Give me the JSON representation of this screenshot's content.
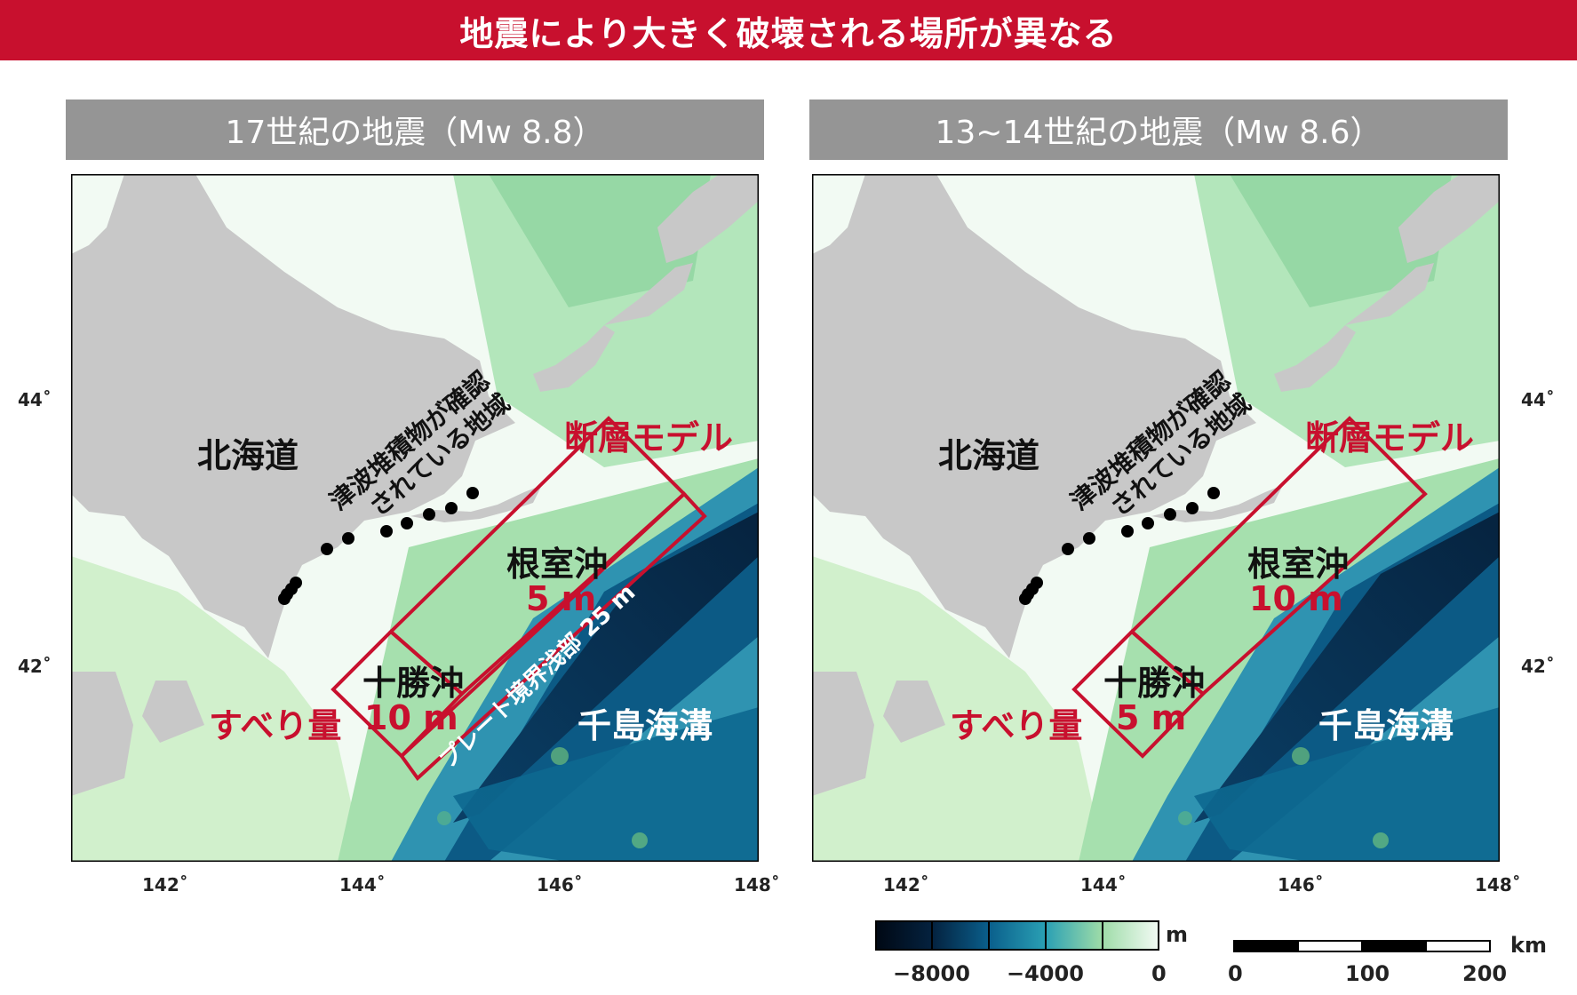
{
  "banner": {
    "title": "地震により大きく破壊される場所が異なる"
  },
  "panels": [
    {
      "title": "17世紀の地震（Mw 8.8）",
      "labels": {
        "hokkaido": "北海道",
        "tsunami_line1": "津波堆積物が確認",
        "tsunami_line2": "されている地域",
        "fault_model": "断層モデル",
        "nemuro": "根室沖",
        "nemuro_slip": "5 m",
        "tokachi": "十勝沖",
        "tokachi_slip": "10 m",
        "slip_label": "すべり量",
        "shallow": "プレート境界浅部 25 m",
        "trench": "千島海溝"
      }
    },
    {
      "title": "13~14世紀の地震（Mw 8.6）",
      "labels": {
        "hokkaido": "北海道",
        "tsunami_line1": "津波堆積物が確認",
        "tsunami_line2": "されている地域",
        "fault_model": "断層モデル",
        "nemuro": "根室沖",
        "nemuro_slip": "10 m",
        "tokachi": "十勝沖",
        "tokachi_slip": "5 m",
        "slip_label": "すべり量",
        "trench": "千島海溝"
      }
    }
  ],
  "axes": {
    "lon_ticks": [
      "142˚",
      "144˚",
      "146˚",
      "148˚"
    ],
    "lat_ticks": [
      "44˚",
      "42˚"
    ]
  },
  "colorbar": {
    "ticks": [
      "−8000",
      "−4000",
      "0"
    ],
    "unit": "m",
    "colors": [
      "#000814",
      "#062a4a",
      "#0a5f8c",
      "#1f93b0",
      "#8fd4a4",
      "#f2faf4"
    ]
  },
  "scalebar": {
    "ticks": [
      "0",
      "100",
      "200"
    ],
    "unit": "km"
  },
  "colors": {
    "accent": "#c8102e",
    "land": "#c8c8c8",
    "fault": "#c8102e",
    "deep": "#0b5f8a"
  }
}
